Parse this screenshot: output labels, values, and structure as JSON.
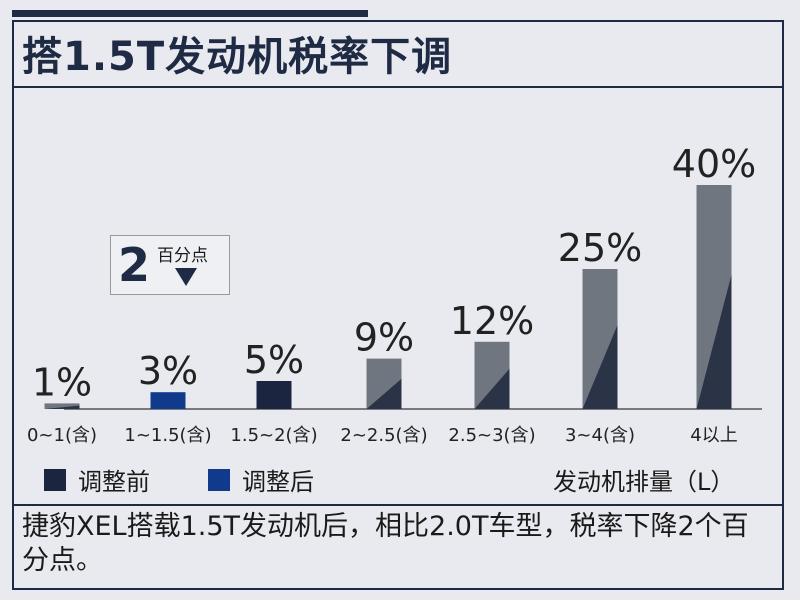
{
  "header": {
    "title": "搭1.5T发动机税率下调"
  },
  "chart_data": {
    "type": "bar",
    "categories": [
      "0~1(含)",
      "1~1.5(含)",
      "1.5~2(含)",
      "2~2.5(含)",
      "2.5~3(含)",
      "3~4(含)",
      "4以上"
    ],
    "values": [
      1,
      3,
      5,
      9,
      12,
      25,
      40
    ],
    "data_labels": [
      "1%",
      "3%",
      "5%",
      "9%",
      "12%",
      "25%",
      "40%"
    ],
    "xlabel": "发动机排量（L）",
    "ylim": [
      0,
      40
    ],
    "series": [
      {
        "name": "调整前",
        "color": "#1c2540"
      },
      {
        "name": "调整后",
        "color": "#123a8c"
      }
    ],
    "bar_styles": [
      "gray",
      "blue",
      "dark",
      "gray",
      "gray",
      "gray",
      "gray"
    ]
  },
  "callout": {
    "number": "2",
    "text": "百分点"
  },
  "colors": {
    "dark": "#1c2540",
    "blue": "#123a8c",
    "gray": "#707680",
    "gray_shadow": "#2b3347"
  },
  "caption": {
    "text": "捷豹XEL搭载1.5T发动机后，相比2.0T车型，税率下降2个百分点。"
  }
}
